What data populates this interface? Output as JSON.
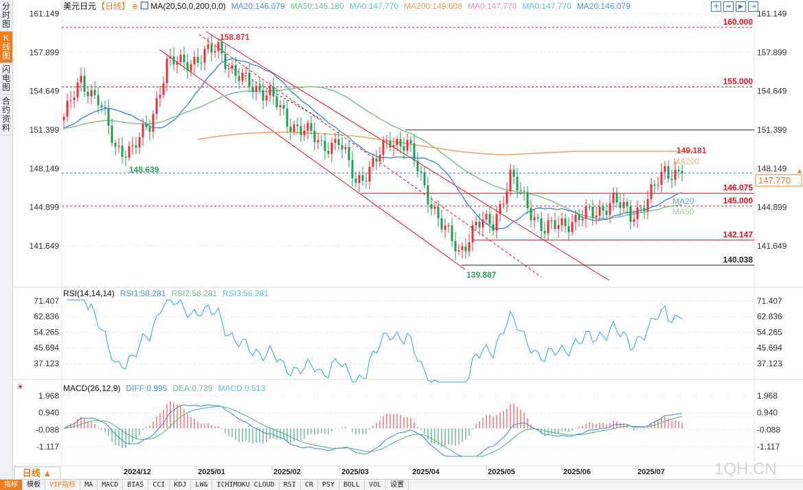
{
  "sidebar": {
    "tabs": [
      {
        "label": "分时图",
        "active": false
      },
      {
        "label": "K线图",
        "active": true
      },
      {
        "label": "闪电图",
        "active": false
      },
      {
        "label": "合约资料",
        "active": false
      }
    ]
  },
  "header": {
    "symbol": "美元日元",
    "period": "【日线】",
    "indicator": "MA(20,50,0,200,0,0)",
    "legend": [
      {
        "text": "MA20:146.079",
        "color": "#4a90e2"
      },
      {
        "text": "MA50:145.180",
        "color": "#6cc08b"
      },
      {
        "text": "MA0:147.770",
        "color": "#5bc0eb"
      },
      {
        "text": "MA200:149.608",
        "color": "#f39c50"
      },
      {
        "text": "MA0:147.770",
        "color": "#e98fc2"
      },
      {
        "text": "MA0:147.770",
        "color": "#5bc0eb"
      },
      {
        "text": "MA20:146.079",
        "color": "#4a90e2"
      }
    ],
    "tool_icons": [
      "crosshair-icon",
      "range-icon",
      "play-icon",
      "exit-icon"
    ]
  },
  "colors": {
    "up": "#ef2b38",
    "down": "#1e9e55",
    "ma20": "#4a90e2",
    "ma50": "#7cc48e",
    "ma200": "#f5a05e",
    "rsi": "#2aa7df",
    "diff": "#3a86d8",
    "dea": "#3fb977"
  },
  "main": {
    "y_ticks": [
      "161.149",
      "157.899",
      "154.649",
      "151.399",
      "148.149",
      "144.899",
      "141.649"
    ],
    "levels": [
      {
        "label": "160.000",
        "price": 160.0,
        "style": "dashed",
        "color": "#e8101c"
      },
      {
        "label": "155.000",
        "price": 155.0,
        "style": "dashed",
        "color": "#e8101c"
      },
      {
        "label": "",
        "price": 151.399,
        "style": "solid",
        "color": "#222"
      },
      {
        "label": "146.075",
        "price": 146.075,
        "style": "solid",
        "color": "#e8101c"
      },
      {
        "label": "145.000",
        "price": 145.0,
        "style": "dashed",
        "color": "#e8101c"
      },
      {
        "label": "142.147",
        "price": 142.147,
        "style": "solid",
        "color": "#e8101c"
      },
      {
        "label": "140.038",
        "price": 140.038,
        "style": "solid",
        "color": "#222"
      }
    ],
    "current_price": "147.770",
    "annotations": {
      "high": "158.871",
      "low1": "148.639",
      "low2": "139.887",
      "recent_high": "149.181"
    },
    "ma_labels": {
      "ma200": "MA200",
      "ma20": "MA20",
      "ma50": "MA50"
    }
  },
  "chart_data": {
    "type": "candlestick",
    "dates": [
      "2024-11-01",
      "2024-11-08",
      "2024-11-15",
      "2024-11-22",
      "2024-11-29",
      "2024-12-06",
      "2024-12-13",
      "2024-12-20",
      "2024-12-27",
      "2025-01-03",
      "2025-01-10",
      "2025-01-17",
      "2025-01-24",
      "2025-01-31",
      "2025-02-07",
      "2025-02-14",
      "2025-02-21",
      "2025-02-28",
      "2025-03-07",
      "2025-03-14",
      "2025-03-21",
      "2025-03-28",
      "2025-04-04",
      "2025-04-11",
      "2025-04-18",
      "2025-04-25",
      "2025-05-02",
      "2025-05-09",
      "2025-05-16",
      "2025-05-23",
      "2025-05-30",
      "2025-06-06",
      "2025-06-13",
      "2025-06-20",
      "2025-06-27",
      "2025-07-04",
      "2025-07-11"
    ],
    "close": [
      152.5,
      155.5,
      154.0,
      149.8,
      149.8,
      151.8,
      157.0,
      157.0,
      157.5,
      158.3,
      156.0,
      155.0,
      154.5,
      152.0,
      151.5,
      150.0,
      150.5,
      147.0,
      148.5,
      150.5,
      150.3,
      146.5,
      143.5,
      141.0,
      143.5,
      143.5,
      147.5,
      145.0,
      143.0,
      143.5,
      144.0,
      144.5,
      145.5,
      144.2,
      145.5,
      148.0,
      147.77
    ],
    "ma200": [
      150.6,
      150.9,
      151.1,
      151.2,
      151.2,
      151.1,
      151.0,
      150.8,
      150.5,
      150.2,
      149.9,
      149.6,
      149.4,
      149.3,
      149.4,
      149.5,
      149.6,
      149.6,
      149.6,
      149.6,
      149.6,
      149.6
    ],
    "ylim": [
      139.5,
      161.5
    ]
  },
  "rsi": {
    "title": "RSI(14,14,14)",
    "rsi1": "RSI1:58.281",
    "rsi2": "RSI2:58.281",
    "rsi3": "RSI3:58.281",
    "y_ticks": [
      "71.407",
      "62.836",
      "54.265",
      "45.694",
      "37.123"
    ]
  },
  "macd": {
    "title": "MACD(26,12,9)",
    "diff": "DIFF:0.995",
    "dea": "DEA:0.739",
    "macd": "MACD:0.513",
    "y_ticks": [
      "1.968",
      "0.940",
      "-0.088",
      "-1.117"
    ]
  },
  "x_axis": [
    "2024/12",
    "2025/01",
    "2025/02",
    "2025/03",
    "2025/04",
    "2025/05",
    "2025/06",
    "2025/07"
  ],
  "period_button": "日线 ▲",
  "watermark": "1QH.CN",
  "toolbar": [
    "指标",
    "模板",
    "VIP指标",
    "MA",
    "MACD",
    "BIAS",
    "CCI",
    "KDJ",
    "LW&",
    "ICHIMOKU CLOUD",
    "RSI",
    "CR",
    "PSY",
    "BOLL",
    "VOL",
    "设置"
  ]
}
